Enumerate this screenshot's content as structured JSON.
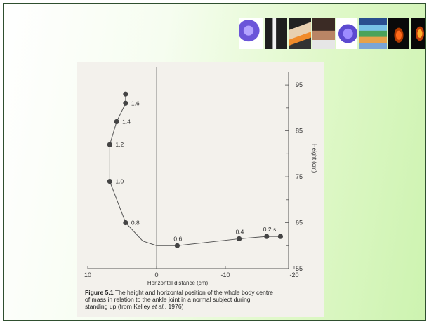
{
  "thumbnails": [
    {
      "name": "molecule-image-1"
    },
    {
      "name": "leg-image"
    },
    {
      "name": "sitting-figure-image"
    },
    {
      "name": "seated-person-image"
    },
    {
      "name": "molecule-image-2"
    },
    {
      "name": "chart-image"
    },
    {
      "name": "thermal-image-1"
    },
    {
      "name": "thermal-image-2"
    }
  ],
  "caption": {
    "fig_label": "Figure 5.1",
    "line1": " The height and horizontal position of the whole body centre",
    "line2": "of mass in relation to the ankle joint in a normal subject during",
    "line3_pre": "standing up (from Kelley ",
    "line3_italic": "et al.",
    "line3_post": ", 1976)"
  },
  "chart_data": {
    "type": "line",
    "title": "",
    "xlabel": "Horizontal distance (cm)",
    "ylabel": "Height (cm)",
    "x_ticks": [
      "10",
      "0",
      "-10",
      "-20"
    ],
    "y_ticks": [
      "95",
      "85",
      "75",
      "65",
      "55"
    ],
    "xlim": [
      10,
      -20
    ],
    "ylim": [
      55,
      97
    ],
    "series": [
      {
        "points": [
          {
            "x": 4.5,
            "y": 93.0,
            "label": ""
          },
          {
            "x": 4.5,
            "y": 91.0,
            "label": "1.6"
          },
          {
            "x": 5.8,
            "y": 87.0,
            "label": "1.4"
          },
          {
            "x": 6.8,
            "y": 82.0,
            "label": "1.2"
          },
          {
            "x": 6.8,
            "y": 74.0,
            "label": "1.0"
          },
          {
            "x": 4.5,
            "y": 65.0,
            "label": "0.8"
          },
          {
            "x": 2.0,
            "y": 61.0,
            "label": ""
          },
          {
            "x": 0.0,
            "y": 60.0,
            "label": ""
          },
          {
            "x": -3.0,
            "y": 60.0,
            "label": "0.6"
          },
          {
            "x": -12.0,
            "y": 61.5,
            "label": "0.4"
          },
          {
            "x": -16.0,
            "y": 62.0,
            "label": "0.2 s"
          },
          {
            "x": -18.0,
            "y": 62.0,
            "label": ""
          }
        ],
        "markers": [
          true,
          true,
          true,
          true,
          true,
          true,
          false,
          false,
          true,
          true,
          true,
          true
        ]
      }
    ]
  }
}
